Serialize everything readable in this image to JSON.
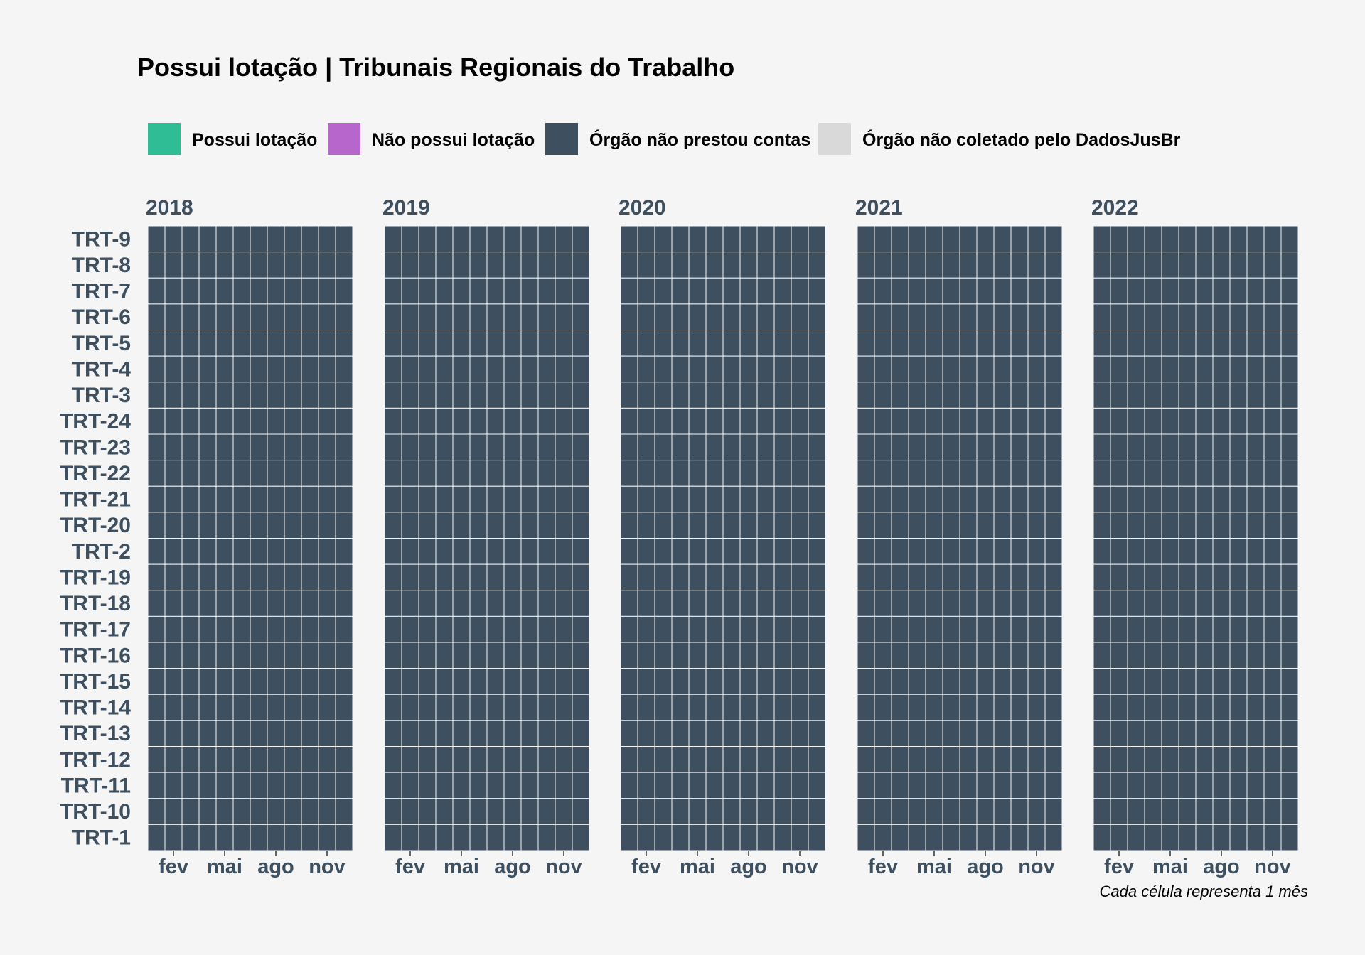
{
  "chart_data": {
    "type": "heatmap",
    "title": "Possui lotação | Tribunais Regionais do Trabalho",
    "caption": "Cada célula representa 1 mês",
    "legend": {
      "placement": "top",
      "items": [
        {
          "label": "Possui lotação",
          "color": "#2fbd96"
        },
        {
          "label": "Não possui lotação",
          "color": "#b766cc"
        },
        {
          "label": "Órgão não prestou contas",
          "color": "#3e5060"
        },
        {
          "label": "Órgão não coletado pelo DadosJusBr",
          "color": "#d9d9d9"
        }
      ]
    },
    "facets": [
      "2018",
      "2019",
      "2020",
      "2021",
      "2022"
    ],
    "months_per_facet": 12,
    "x_tick_labels": [
      {
        "month": 2,
        "label": "fev"
      },
      {
        "month": 5,
        "label": "mai"
      },
      {
        "month": 8,
        "label": "ago"
      },
      {
        "month": 11,
        "label": "nov"
      }
    ],
    "rows": [
      "TRT-9",
      "TRT-8",
      "TRT-7",
      "TRT-6",
      "TRT-5",
      "TRT-4",
      "TRT-3",
      "TRT-24",
      "TRT-23",
      "TRT-22",
      "TRT-21",
      "TRT-20",
      "TRT-2",
      "TRT-19",
      "TRT-18",
      "TRT-17",
      "TRT-16",
      "TRT-15",
      "TRT-14",
      "TRT-13",
      "TRT-12",
      "TRT-11",
      "TRT-10",
      "TRT-1"
    ],
    "cell_value_all": "Órgão não prestou contas",
    "text_color": "#3e5060",
    "grid_line_color": "#f5f5f5"
  }
}
